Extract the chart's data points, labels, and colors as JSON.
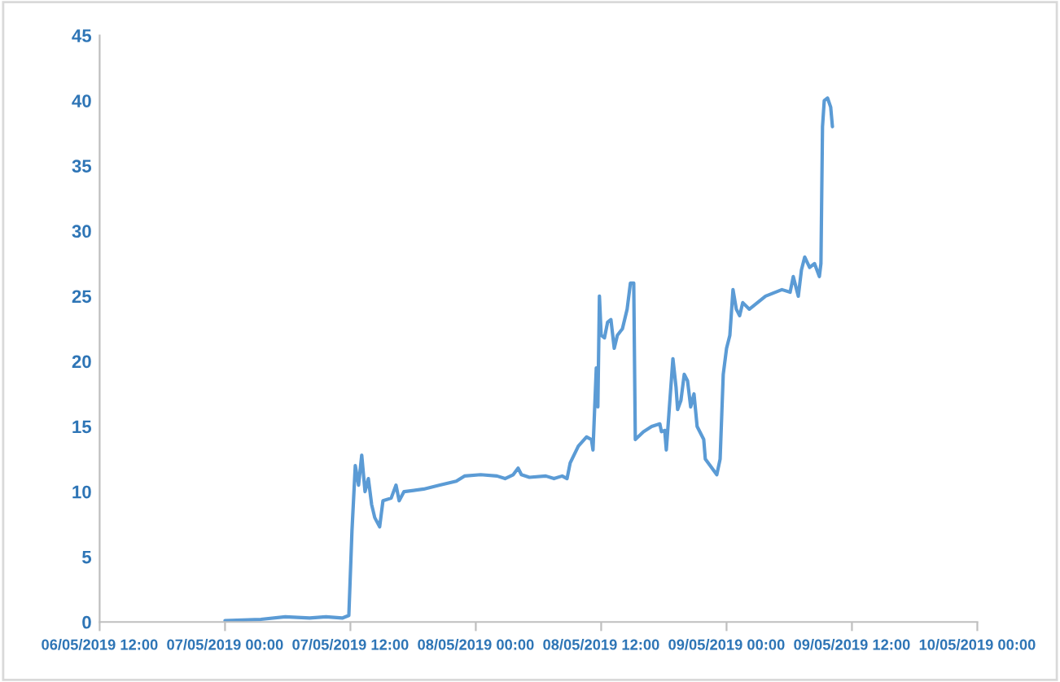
{
  "chart_data": {
    "type": "line",
    "x": [
      "2019-05-07T00:00",
      "2019-05-07T03:26",
      "2019-05-07T05:46",
      "2019-05-07T08:06",
      "2019-05-07T09:40",
      "2019-05-07T11:13",
      "2019-05-07T11:51",
      "2019-05-07T12:09",
      "2019-05-07T12:28",
      "2019-05-07T12:47",
      "2019-05-07T13:05",
      "2019-05-07T13:24",
      "2019-05-07T13:43",
      "2019-05-07T14:02",
      "2019-05-07T14:20",
      "2019-05-07T14:48",
      "2019-05-07T15:07",
      "2019-05-07T15:54",
      "2019-05-07T16:22",
      "2019-05-07T16:40",
      "2019-05-07T17:08",
      "2019-05-07T19:01",
      "2019-05-07T20:34",
      "2019-05-07T22:08",
      "2019-05-07T22:55",
      "2019-05-08T00:28",
      "2019-05-08T02:02",
      "2019-05-08T02:48",
      "2019-05-08T03:35",
      "2019-05-08T04:03",
      "2019-05-08T04:22",
      "2019-05-08T05:08",
      "2019-05-08T06:42",
      "2019-05-08T07:29",
      "2019-05-08T08:16",
      "2019-05-08T08:44",
      "2019-05-08T09:02",
      "2019-05-08T09:49",
      "2019-05-08T10:36",
      "2019-05-08T11:04",
      "2019-05-08T11:13",
      "2019-05-08T11:32",
      "2019-05-08T11:41",
      "2019-05-08T11:50",
      "2019-05-08T12:00",
      "2019-05-08T12:19",
      "2019-05-08T12:37",
      "2019-05-08T12:56",
      "2019-05-08T13:15",
      "2019-05-08T13:33",
      "2019-05-08T14:02",
      "2019-05-08T14:29",
      "2019-05-08T14:48",
      "2019-05-08T15:07",
      "2019-05-08T15:16",
      "2019-05-08T16:03",
      "2019-05-08T16:50",
      "2019-05-08T17:37",
      "2019-05-08T17:46",
      "2019-05-08T18:05",
      "2019-05-08T18:14",
      "2019-05-08T18:52",
      "2019-05-08T19:10",
      "2019-05-08T19:19",
      "2019-05-08T19:38",
      "2019-05-08T19:57",
      "2019-05-08T20:16",
      "2019-05-08T20:34",
      "2019-05-08T20:53",
      "2019-05-08T21:11",
      "2019-05-08T21:49",
      "2019-05-08T21:58",
      "2019-05-08T23:04",
      "2019-05-08T23:23",
      "2019-05-08T23:41",
      "2019-05-09T00:00",
      "2019-05-09T00:19",
      "2019-05-09T00:37",
      "2019-05-09T00:56",
      "2019-05-09T01:15",
      "2019-05-09T01:33",
      "2019-05-09T02:11",
      "2019-05-09T03:44",
      "2019-05-09T05:18",
      "2019-05-09T06:05",
      "2019-05-09T06:23",
      "2019-05-09T06:52",
      "2019-05-09T07:10",
      "2019-05-09T07:29",
      "2019-05-09T07:57",
      "2019-05-09T08:25",
      "2019-05-09T08:53",
      "2019-05-09T09:02",
      "2019-05-09T09:11",
      "2019-05-09T09:21",
      "2019-05-09T09:40",
      "2019-05-09T09:58",
      "2019-05-09T10:08"
    ],
    "series": [
      {
        "color": "#5b9bd5",
        "values": [
          0.1,
          0.2,
          0.4,
          0.3,
          0.4,
          0.3,
          0.5,
          7,
          12,
          10.5,
          12.8,
          10,
          11,
          9,
          8,
          7.3,
          9.3,
          9.5,
          10.5,
          9.3,
          10,
          10.2,
          10.5,
          10.8,
          11.2,
          11.3,
          11.2,
          11,
          11.3,
          11.8,
          11.3,
          11.1,
          11.2,
          11,
          11.2,
          11,
          12.2,
          13.5,
          14.2,
          14,
          13.2,
          19.5,
          16.5,
          25,
          22,
          21.8,
          23,
          23.2,
          21,
          22,
          22.5,
          24,
          26,
          26,
          14,
          14.6,
          15,
          15.2,
          14.6,
          14.7,
          13.2,
          20.2,
          18,
          16.3,
          17,
          19,
          18.5,
          16.5,
          17.5,
          15,
          14,
          12.5,
          11.3,
          12.5,
          19,
          21,
          22,
          25.5,
          24,
          23.5,
          24.5,
          24,
          25,
          25.5,
          25.3,
          26.5,
          25,
          27,
          28,
          27.2,
          27.5,
          26.5,
          27.5,
          38,
          40,
          40.2,
          39.5,
          38
        ]
      }
    ],
    "xlim": [
      "2019-05-06T12:00",
      "2019-05-10T00:00"
    ],
    "xticks": [
      {
        "value": "2019-05-06T12:00",
        "label": "06/05/2019 12:00"
      },
      {
        "value": "2019-05-07T00:00",
        "label": "07/05/2019 00:00"
      },
      {
        "value": "2019-05-07T12:00",
        "label": "07/05/2019 12:00"
      },
      {
        "value": "2019-05-08T00:00",
        "label": "08/05/2019 00:00"
      },
      {
        "value": "2019-05-08T12:00",
        "label": "08/05/2019 12:00"
      },
      {
        "value": "2019-05-09T00:00",
        "label": "09/05/2019 00:00"
      },
      {
        "value": "2019-05-09T12:00",
        "label": "09/05/2019 12:00"
      },
      {
        "value": "2019-05-10T00:00",
        "label": "10/05/2019 00:00"
      }
    ],
    "ylim": [
      0,
      45
    ],
    "yticks": [
      0,
      5,
      10,
      15,
      20,
      25,
      30,
      35,
      40,
      45
    ],
    "grid": false,
    "legend": false
  }
}
